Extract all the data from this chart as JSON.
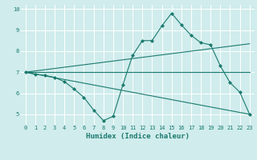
{
  "lines": [
    {
      "x": [
        0,
        1,
        2,
        3,
        4,
        5,
        6,
        7,
        8,
        9,
        10,
        11,
        12,
        13,
        14,
        15,
        16,
        17,
        18,
        19,
        20,
        21,
        22,
        23
      ],
      "y": [
        7.0,
        6.9,
        6.85,
        6.75,
        6.55,
        6.2,
        5.8,
        5.2,
        4.7,
        4.9,
        6.4,
        7.8,
        8.5,
        8.5,
        9.2,
        9.8,
        9.25,
        8.75,
        8.4,
        8.3,
        7.3,
        6.5,
        6.05,
        5.0
      ],
      "marker": "D",
      "markersize": 2.0
    },
    {
      "x": [
        0,
        23
      ],
      "y": [
        7.0,
        8.35
      ],
      "marker": null
    },
    {
      "x": [
        0,
        23
      ],
      "y": [
        7.0,
        7.0
      ],
      "marker": null
    },
    {
      "x": [
        0,
        23
      ],
      "y": [
        7.0,
        5.0
      ],
      "marker": null
    }
  ],
  "line_color": "#1a7a6e",
  "bg_color": "#d0ecec",
  "grid_color": "#ffffff",
  "xlim": [
    -0.5,
    23.5
  ],
  "ylim": [
    4.5,
    10.2
  ],
  "xticks": [
    0,
    1,
    2,
    3,
    4,
    5,
    6,
    7,
    8,
    9,
    10,
    11,
    12,
    13,
    14,
    15,
    16,
    17,
    18,
    19,
    20,
    21,
    22,
    23
  ],
  "yticks": [
    5,
    6,
    7,
    8,
    9,
    10
  ],
  "xlabel": "Humidex (Indice chaleur)",
  "tick_fontsize": 5.0,
  "label_fontsize": 6.5
}
